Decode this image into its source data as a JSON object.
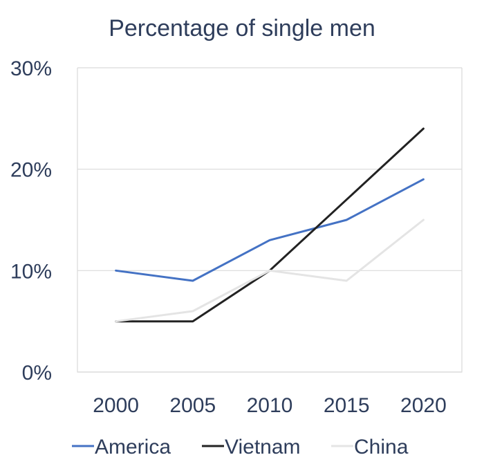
{
  "chart_data": {
    "type": "line",
    "title": "Percentage of single men",
    "xlabel": "",
    "ylabel": "",
    "categories": [
      "2000",
      "2005",
      "2010",
      "2015",
      "2020"
    ],
    "ylim": [
      0,
      30
    ],
    "y_ticks": [
      0,
      10,
      20,
      30
    ],
    "y_tick_labels": [
      "0%",
      "10%",
      "20%",
      "30%"
    ],
    "grid": "horizontal",
    "legend_position": "bottom",
    "series": [
      {
        "name": "America",
        "color": "#4472c4",
        "values": [
          10,
          9,
          13,
          15,
          19
        ]
      },
      {
        "name": "Vietnam",
        "color": "#222222",
        "values": [
          5,
          5,
          10,
          17,
          24
        ]
      },
      {
        "name": "China",
        "color": "#e4e4e4",
        "values": [
          5,
          6,
          10,
          9,
          15
        ]
      }
    ]
  }
}
